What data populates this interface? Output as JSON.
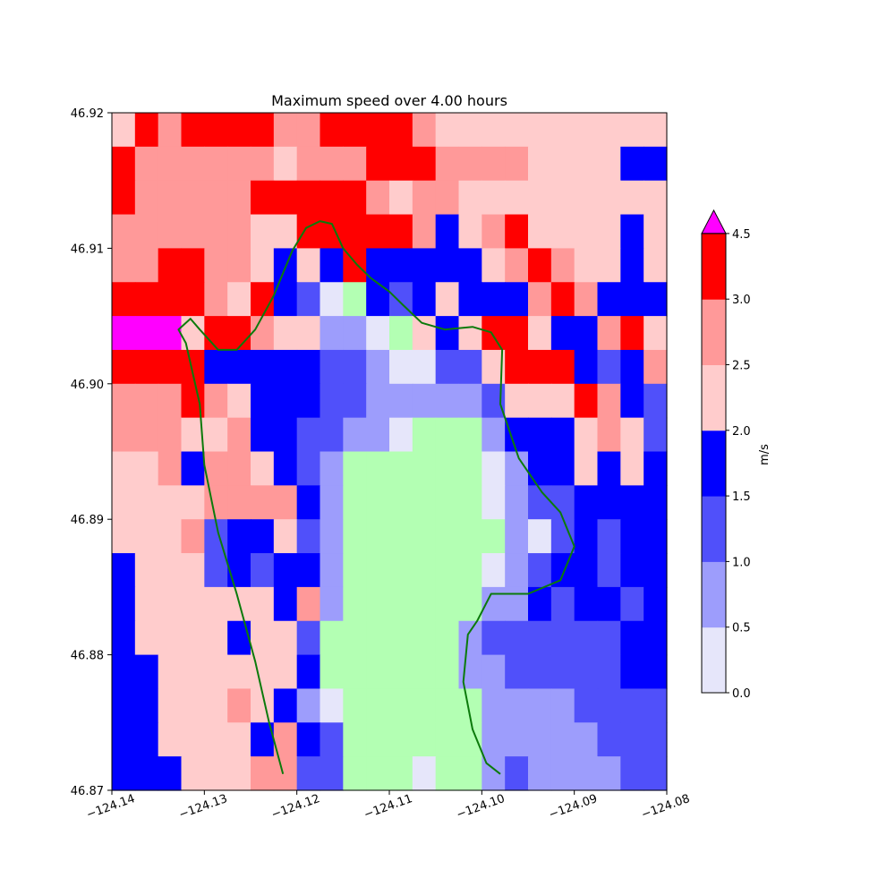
{
  "chart_data": {
    "type": "heatmap",
    "title": "Maximum speed over 4.00 hours",
    "xlabel": "",
    "ylabel": "",
    "xlim": [
      -124.14,
      -124.08
    ],
    "ylim": [
      46.87,
      46.92
    ],
    "x_ticks": [
      -124.14,
      -124.13,
      -124.12,
      -124.11,
      -124.1,
      -124.09,
      -124.08
    ],
    "x_tick_labels": [
      "−124.14",
      "−124.13",
      "−124.12",
      "−124.11",
      "−124.10",
      "−124.09",
      "−124.08"
    ],
    "y_ticks": [
      46.87,
      46.88,
      46.89,
      46.9,
      46.91,
      46.92
    ],
    "y_tick_labels": [
      "46.87",
      "46.88",
      "46.89",
      "46.90",
      "46.91",
      "46.92"
    ],
    "grid": false,
    "colorbar": {
      "label": "m/s",
      "ticks": [
        0.0,
        0.5,
        1.0,
        1.5,
        2.0,
        2.5,
        3.0,
        4.5
      ],
      "tick_labels": [
        "0.0",
        "0.5",
        "1.0",
        "1.5",
        "2.0",
        "2.5",
        "3.0",
        "4.5"
      ],
      "bins": [
        {
          "from": 0.0,
          "to": 0.5,
          "color": "#e6e6fa"
        },
        {
          "from": 0.5,
          "to": 1.0,
          "color": "#9d9dfc"
        },
        {
          "from": 1.0,
          "to": 1.5,
          "color": "#5050fa"
        },
        {
          "from": 1.5,
          "to": 2.0,
          "color": "#0000ff"
        },
        {
          "from": 2.0,
          "to": 2.5,
          "color": "#ffcccc"
        },
        {
          "from": 2.5,
          "to": 3.0,
          "color": "#ff9999"
        },
        {
          "from": 3.0,
          "to": 4.5,
          "color": "#ff0000"
        }
      ],
      "extend_max_color": "#ff00ff",
      "land_color": "#b3ffb3"
    },
    "grid_legend": {
      "W": "0.0-0.5",
      "L": "0.5-1.0",
      "M": "1.0-1.5",
      "B": "1.5-2.0",
      "P": "2.0-2.5",
      "S": "2.5-3.0",
      "R": "3.0-4.5",
      "X": ">4.5",
      "G": "land"
    },
    "cell_grid_rows_top_to_bottom": [
      "PRSRRRRSSRRRRSPPPPPPPPPP",
      "RSSSSSSPSSSRRRSSSSPPPPBB",
      "RSSSSSRRRRRSPSSPPPPPPPPP",
      "SSSSSSPPRRRRRSBPSRPPPPBP",
      "SSRRSSPBPBRBBBBBPSRSPPBP",
      "RRRRSPRBMWGBMBPBBBSRSBBB",
      "XXXPRRSPPLLWGPBPRRPBBSRP",
      "RRRRBBBBBMMLWWMMPRRRBMBS",
      "SSSRSPBBBMMLLLLLMPPPRSBM",
      "SSSPPSBBMMLLWGGGLBBBPSPM",
      "PPSBSSPBMLGGGGGGWLBBPBPB",
      "PPPPSSSSBLGGGGGGWLMMBBBB",
      "PPPSMBBPMLGGGGGGGLWMBMBB",
      "BPPPMBMBBLGGGGGGWLMBBMBB",
      "BPPPPPPBSLGGGGGGLLBMBBMB",
      "BPPPPBPPMGGGGGGLMMMMMMBB",
      "BBPPPPPPBGGGGGGLLMMMMMBB",
      "BBPPPSPBLWGGGGGGLLLLMMMM",
      "BBPPPPBSBMGGGGGGLLLLLMMM",
      "BBBPPPSSMMGGGWGGLMLLLLMM"
    ],
    "series": [
      {
        "type": "line",
        "color": "#0b7a0b",
        "x": [
          -124.1215,
          -124.123,
          -124.1245,
          -124.1265,
          -124.1285,
          -124.13,
          -124.1305,
          -124.132,
          -124.1328,
          -124.1315,
          -124.1305,
          -124.1285,
          -124.1265,
          -124.1245,
          -124.1225,
          -124.1205,
          -124.119,
          -124.1175,
          -124.1162,
          -124.115,
          -124.1135,
          -124.112,
          -124.11,
          -124.1085,
          -124.1065,
          -124.104,
          -124.101,
          -124.099,
          -124.0978,
          -124.098,
          -124.096,
          -124.0935,
          -124.0915,
          -124.09,
          -124.0915,
          -124.095,
          -124.099,
          -124.1005,
          -124.1015,
          -124.102,
          -124.101,
          -124.0995,
          -124.098
        ],
        "y": [
          46.8712,
          46.875,
          46.8795,
          46.8845,
          46.889,
          46.894,
          46.8985,
          46.903,
          46.904,
          46.9048,
          46.904,
          46.9025,
          46.9025,
          46.904,
          46.9065,
          46.9098,
          46.9115,
          46.912,
          46.9118,
          46.91,
          46.9088,
          46.9078,
          46.9068,
          46.9058,
          46.9045,
          46.904,
          46.9042,
          46.9038,
          46.9025,
          46.8985,
          46.8945,
          46.892,
          46.8905,
          46.888,
          46.8855,
          46.8845,
          46.8845,
          46.8825,
          46.8815,
          46.878,
          46.8745,
          46.872,
          46.8712
        ]
      }
    ]
  }
}
